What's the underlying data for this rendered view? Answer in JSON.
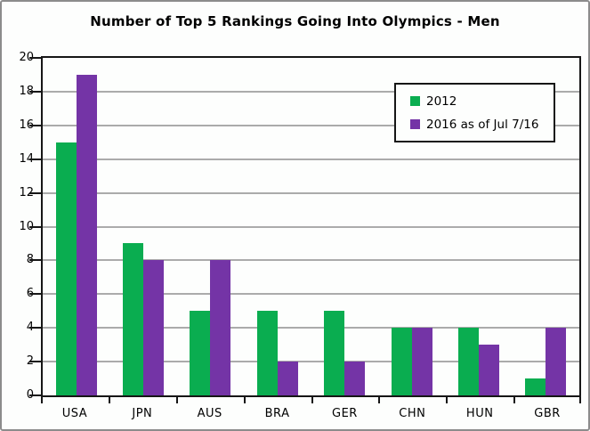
{
  "chart_data": {
    "type": "bar",
    "title": "Number of Top 5 Rankings Going Into Olympics - Men",
    "categories": [
      "USA",
      "JPN",
      "AUS",
      "BRA",
      "GER",
      "CHN",
      "HUN",
      "GBR"
    ],
    "series": [
      {
        "name": "2012",
        "color": "#0AAD50",
        "values": [
          15,
          9,
          5,
          5,
          5,
          4,
          4,
          1
        ]
      },
      {
        "name": "2016 as of Jul 7/16",
        "color": "#7434A6",
        "values": [
          19,
          8,
          8,
          2,
          2,
          4,
          3,
          4
        ]
      }
    ],
    "xlabel": "",
    "ylabel": "",
    "ylim": [
      0,
      20
    ],
    "yticks": [
      0,
      2,
      4,
      6,
      8,
      10,
      12,
      14,
      16,
      18,
      20
    ],
    "grid": "horizontal",
    "gridline_color": "#ABABAB",
    "axis_color": "#161616",
    "legend_position": "upper-right-inside"
  }
}
